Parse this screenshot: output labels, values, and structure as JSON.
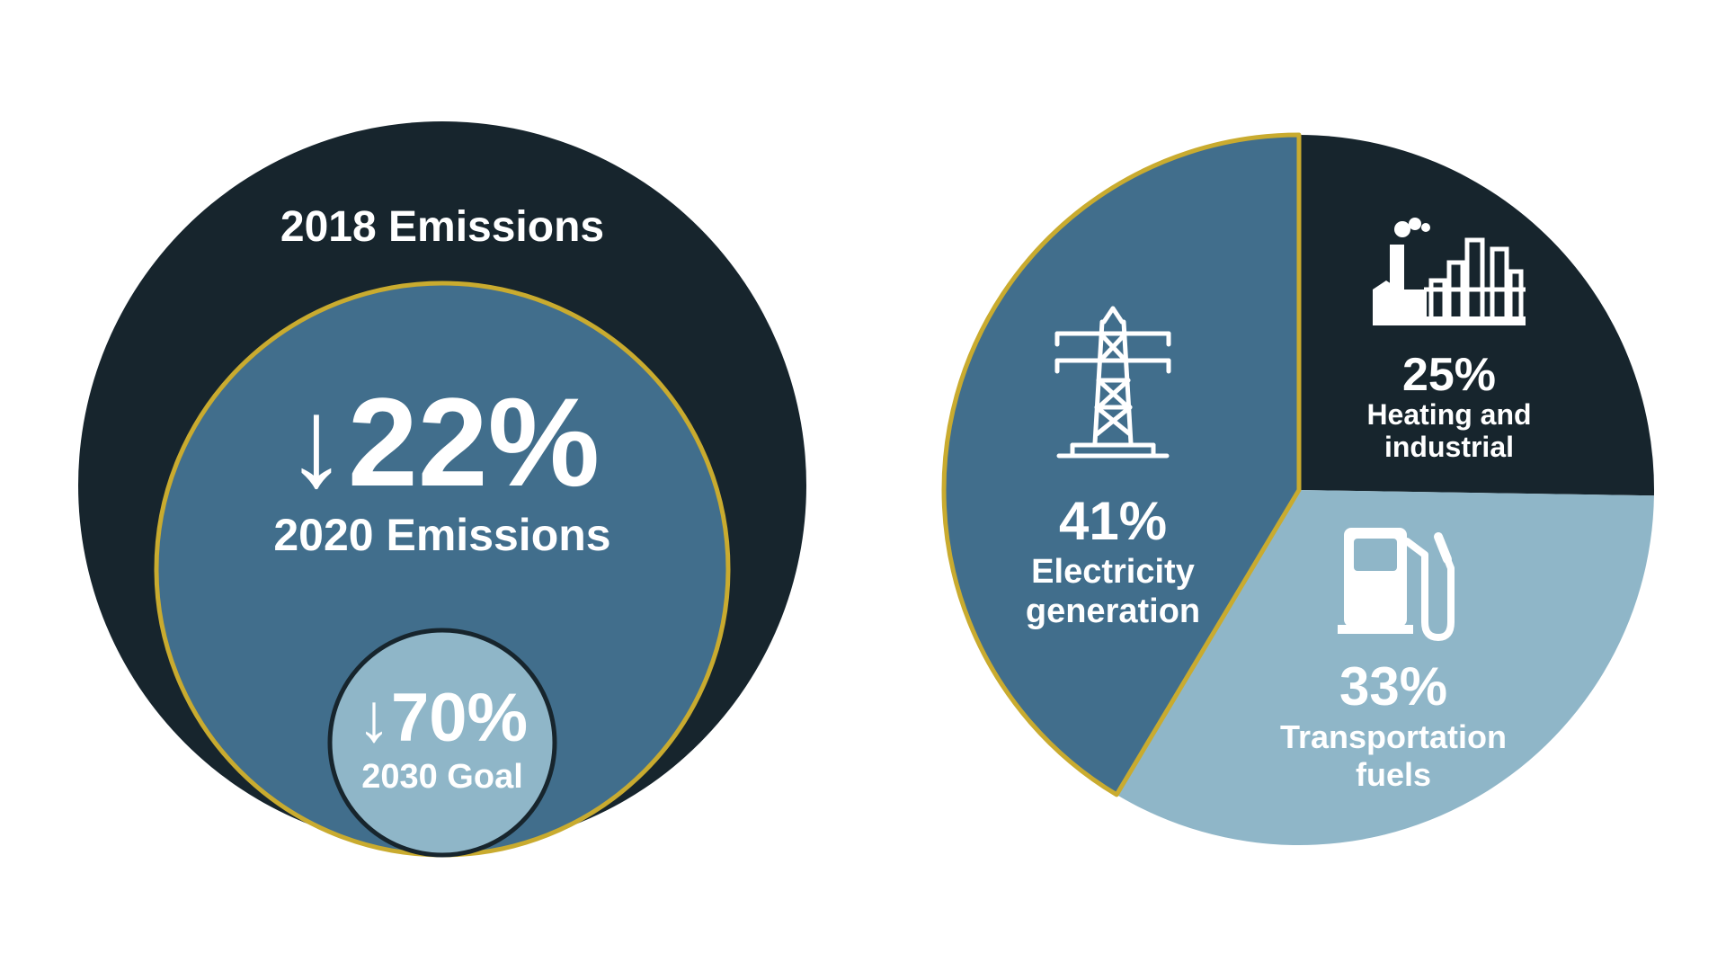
{
  "colors": {
    "dark": "#17252d",
    "mid": "#416e8c",
    "light": "#8fb6c8",
    "gold": "#c9ab2f",
    "text": "#ffffff",
    "background": "#ffffff"
  },
  "chart_data": [
    {
      "type": "bubble",
      "description_free": true,
      "circles": [
        {
          "name": "2018 Emissions",
          "label": "2018 Emissions",
          "relative_level": 100
        },
        {
          "name": "2020 Emissions",
          "label": "2020 Emissions",
          "change_label": "↓22%",
          "reduction_percent": 22,
          "relative_level": 78
        },
        {
          "name": "2030 Goal",
          "label": "2030 Goal",
          "change_label": "↓70%",
          "reduction_percent": 70,
          "relative_level": 30
        }
      ]
    },
    {
      "type": "pie",
      "slices": [
        {
          "name": "Electricity generation",
          "value": 41,
          "value_label": "41%",
          "label_lines": [
            "Electricity",
            "generation"
          ],
          "icon": "power-tower-icon",
          "color": "#416e8c"
        },
        {
          "name": "Heating and industrial",
          "value": 25,
          "value_label": "25%",
          "label_lines": [
            "Heating and",
            "industrial"
          ],
          "icon": "factory-icon",
          "color": "#17252d"
        },
        {
          "name": "Transportation fuels",
          "value": 33,
          "value_label": "33%",
          "label_lines": [
            "Transportation",
            "fuels"
          ],
          "icon": "fuel-pump-icon",
          "color": "#8fb6c8"
        }
      ]
    }
  ]
}
